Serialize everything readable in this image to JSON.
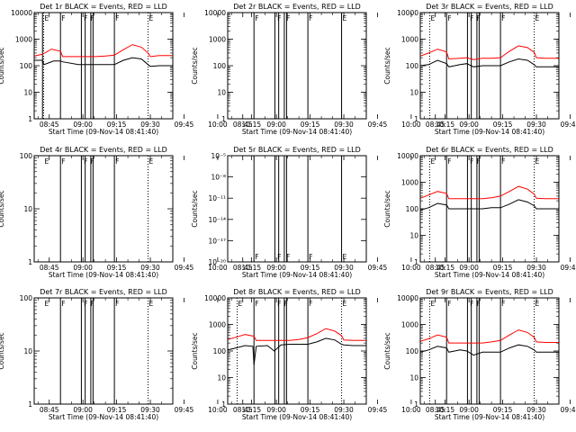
{
  "common": {
    "xlabel": "Start Time (09-Nov-14 08:41:40)",
    "ylabel": "Counts/sec",
    "xticks": [
      "08:45",
      "09:00",
      "09:15",
      "09:30",
      "09:45",
      "10:00",
      "10:15"
    ],
    "xrange_minutes": [
      38.3,
      100
    ],
    "event_color": "#000000",
    "lld_color": "#ff0000"
  },
  "chart_data": [
    {
      "type": "line",
      "title": "Det 1r BLACK = Events, RED = LLD",
      "ylog": true,
      "ylim": [
        1,
        10000
      ],
      "yticks": [
        {
          "v": 1,
          "l": "1"
        },
        {
          "v": 10,
          "l": "10"
        },
        {
          "v": 100,
          "l": "100"
        },
        {
          "v": 1000,
          "l": "1000"
        },
        {
          "v": 10000,
          "l": "10000"
        }
      ],
      "flags": [
        {
          "x": 42.5,
          "t": "E"
        },
        {
          "x": 50,
          "t": "F"
        },
        {
          "x": 60,
          "t": "F"
        },
        {
          "x": 63,
          "t": "F"
        },
        {
          "x": 74,
          "t": "F"
        },
        {
          "x": 89,
          "t": "E"
        }
      ],
      "vlines": [
        42,
        50,
        59.3,
        61,
        63.5,
        64.5,
        74
      ],
      "dotted": [
        42.5,
        89
      ],
      "series": [
        {
          "name": "Events",
          "color": "#000000",
          "x": [
            38.3,
            42,
            42.6,
            47,
            50,
            51,
            58,
            62,
            66,
            70,
            74,
            78,
            82,
            86,
            89,
            90,
            94,
            100
          ],
          "y": [
            160,
            160,
            110,
            150,
            150,
            140,
            110,
            110,
            110,
            110,
            110,
            160,
            200,
            180,
            110,
            95,
            100,
            100
          ]
        },
        {
          "name": "LLD",
          "color": "#ff0000",
          "x": [
            38.3,
            42,
            46,
            50,
            51,
            58,
            62,
            66,
            70,
            74,
            78,
            82,
            86,
            89,
            90,
            94,
            100
          ],
          "y": [
            230,
            270,
            420,
            350,
            220,
            220,
            220,
            220,
            230,
            250,
            400,
            620,
            500,
            300,
            220,
            240,
            240
          ]
        }
      ]
    },
    {
      "type": "line",
      "title": "Det 2r BLACK = Events, RED = LLD",
      "ylog": true,
      "ylim": [
        1,
        10000
      ],
      "yticks": [
        {
          "v": 1,
          "l": "1"
        },
        {
          "v": 10,
          "l": "10"
        },
        {
          "v": 100,
          "l": "100"
        },
        {
          "v": 1000,
          "l": "1000"
        },
        {
          "v": 10000,
          "l": "10000"
        }
      ],
      "flags": [
        {
          "x": 50,
          "t": "F"
        },
        {
          "x": 60,
          "t": "F"
        },
        {
          "x": 64,
          "t": "F"
        },
        {
          "x": 74,
          "t": "F"
        },
        {
          "x": 89,
          "t": "E"
        }
      ],
      "vlines": [
        50,
        59.3,
        61,
        63.5,
        64.5,
        74,
        89
      ],
      "dotted": [],
      "series": []
    },
    {
      "type": "line",
      "title": "Det 3r BLACK = Events, RED = LLD",
      "ylog": true,
      "ylim": [
        1,
        10000
      ],
      "yticks": [
        {
          "v": 1,
          "l": "1"
        },
        {
          "v": 10,
          "l": "10"
        },
        {
          "v": 100,
          "l": "100"
        },
        {
          "v": 1000,
          "l": "1000"
        },
        {
          "v": 10000,
          "l": "10000"
        }
      ],
      "flags": [
        {
          "x": 42.5,
          "t": "E"
        },
        {
          "x": 50,
          "t": "F"
        },
        {
          "x": 60,
          "t": "F"
        },
        {
          "x": 63,
          "t": "F"
        },
        {
          "x": 74,
          "t": "F"
        },
        {
          "x": 89,
          "t": "E"
        }
      ],
      "vlines": [
        50,
        59.3,
        61,
        63.5,
        64.5,
        74
      ],
      "dotted": [
        42.5,
        89
      ],
      "series": [
        {
          "name": "Events",
          "color": "#000000",
          "x": [
            38.3,
            42,
            46,
            50,
            51,
            56,
            59,
            62,
            66,
            70,
            74,
            78,
            82,
            86,
            89,
            90,
            94,
            100
          ],
          "y": [
            100,
            110,
            160,
            120,
            90,
            110,
            120,
            90,
            100,
            100,
            100,
            140,
            180,
            160,
            110,
            90,
            90,
            90
          ]
        },
        {
          "name": "LLD",
          "color": "#ff0000",
          "x": [
            38.3,
            42,
            46,
            50,
            51,
            56,
            59,
            62,
            66,
            70,
            74,
            78,
            82,
            86,
            89,
            90,
            94,
            100
          ],
          "y": [
            230,
            300,
            420,
            330,
            180,
            190,
            200,
            170,
            190,
            190,
            200,
            350,
            560,
            480,
            320,
            200,
            190,
            190
          ]
        }
      ]
    },
    {
      "type": "line",
      "title": "Det 4r BLACK = Events, RED = LLD",
      "ylog": true,
      "ylim": [
        1,
        100
      ],
      "yticks": [
        {
          "v": 1,
          "l": "1"
        },
        {
          "v": 10,
          "l": "10"
        },
        {
          "v": 100,
          "l": "100"
        }
      ],
      "flags": [
        {
          "x": 42.5,
          "t": "E"
        },
        {
          "x": 50,
          "t": "F"
        },
        {
          "x": 60,
          "t": "F"
        },
        {
          "x": 63,
          "t": "F"
        },
        {
          "x": 74,
          "t": "F"
        },
        {
          "x": 89,
          "t": "E"
        }
      ],
      "vlines": [
        50,
        59.3,
        61,
        63.5,
        64.5,
        74
      ],
      "dotted": [
        89
      ],
      "series": []
    },
    {
      "type": "line",
      "title": "Det 5r BLACK = Events, RED = LLD",
      "ylog": true,
      "ylim": [
        1e-20,
        1e-05
      ],
      "yticks": [
        {
          "v": 1e-20,
          "l": "10⁻²⁰"
        },
        {
          "v": 1e-17,
          "l": "10⁻¹⁷"
        },
        {
          "v": 1e-14,
          "l": "10⁻¹⁴"
        },
        {
          "v": 1e-11,
          "l": "10⁻¹¹"
        },
        {
          "v": 1e-08,
          "l": "10⁻⁸"
        },
        {
          "v": 1e-05,
          "l": "10⁻⁵"
        }
      ],
      "flags": [
        {
          "x": 50,
          "t": "F"
        },
        {
          "x": 60,
          "t": "F"
        },
        {
          "x": 64,
          "t": "F"
        },
        {
          "x": 74,
          "t": "F"
        },
        {
          "x": 89,
          "t": "E"
        }
      ],
      "flags_bottom": true,
      "vlines": [
        50,
        59.3,
        61,
        63.5,
        64.5,
        74,
        89
      ],
      "dotted": [],
      "series": []
    },
    {
      "type": "line",
      "title": "Det 6r BLACK = Events, RED = LLD",
      "ylog": true,
      "ylim": [
        1,
        10000
      ],
      "yticks": [
        {
          "v": 1,
          "l": "1"
        },
        {
          "v": 10,
          "l": "10"
        },
        {
          "v": 100,
          "l": "100"
        },
        {
          "v": 1000,
          "l": "1000"
        },
        {
          "v": 10000,
          "l": "10000"
        }
      ],
      "flags": [
        {
          "x": 42.5,
          "t": "E"
        },
        {
          "x": 50,
          "t": "F"
        },
        {
          "x": 60,
          "t": "F"
        },
        {
          "x": 63,
          "t": "F"
        },
        {
          "x": 74,
          "t": "F"
        },
        {
          "x": 89,
          "t": "E"
        }
      ],
      "vlines": [
        50,
        59.3,
        61,
        63.5,
        64.5,
        74
      ],
      "dotted": [
        42.5,
        89
      ],
      "series": [
        {
          "name": "Events",
          "color": "#000000",
          "x": [
            38.3,
            42,
            46,
            50,
            51,
            56,
            62,
            66,
            70,
            74,
            78,
            82,
            86,
            89,
            90,
            94,
            100
          ],
          "y": [
            90,
            110,
            160,
            140,
            100,
            100,
            100,
            100,
            110,
            110,
            150,
            220,
            180,
            130,
            100,
            100,
            100
          ]
        },
        {
          "name": "LLD",
          "color": "#ff0000",
          "x": [
            38.3,
            42,
            46,
            50,
            51,
            56,
            62,
            66,
            70,
            74,
            78,
            82,
            86,
            89,
            90,
            94,
            100
          ],
          "y": [
            250,
            330,
            450,
            380,
            240,
            240,
            240,
            240,
            260,
            300,
            450,
            700,
            550,
            360,
            250,
            240,
            240
          ]
        }
      ]
    },
    {
      "type": "line",
      "title": "Det 7r BLACK = Events, RED = LLD",
      "ylog": true,
      "ylim": [
        1,
        100
      ],
      "yticks": [
        {
          "v": 1,
          "l": "1"
        },
        {
          "v": 10,
          "l": "10"
        },
        {
          "v": 100,
          "l": "100"
        }
      ],
      "flags": [
        {
          "x": 42.5,
          "t": "E"
        },
        {
          "x": 50,
          "t": "F"
        },
        {
          "x": 60,
          "t": "F"
        },
        {
          "x": 63,
          "t": "F"
        },
        {
          "x": 74,
          "t": "F"
        },
        {
          "x": 89,
          "t": "E"
        }
      ],
      "vlines": [
        50,
        59.3,
        61,
        63.5,
        64.5,
        74
      ],
      "dotted": [
        89
      ],
      "series": []
    },
    {
      "type": "line",
      "title": "Det 8r BLACK = Events, RED = LLD",
      "ylog": true,
      "ylim": [
        1,
        10000
      ],
      "yticks": [
        {
          "v": 1,
          "l": "1"
        },
        {
          "v": 10,
          "l": "10"
        },
        {
          "v": 100,
          "l": "100"
        },
        {
          "v": 1000,
          "l": "1000"
        },
        {
          "v": 10000,
          "l": "10000"
        }
      ],
      "flags": [
        {
          "x": 42.5,
          "t": "E"
        },
        {
          "x": 50,
          "t": "F"
        },
        {
          "x": 60,
          "t": "F"
        },
        {
          "x": 63,
          "t": "F"
        },
        {
          "x": 74,
          "t": "F"
        },
        {
          "x": 89,
          "t": "E"
        }
      ],
      "vlines": [
        50,
        59.3,
        61,
        63.5,
        64.5,
        74
      ],
      "dotted": [
        42.5,
        89
      ],
      "series": [
        {
          "name": "Events",
          "color": "#000000",
          "x": [
            38.3,
            42,
            46,
            49.5,
            50,
            51,
            56,
            59,
            62,
            66,
            70,
            74,
            78,
            82,
            86,
            89,
            90,
            94,
            100
          ],
          "y": [
            110,
            130,
            160,
            150,
            30,
            150,
            160,
            100,
            170,
            180,
            180,
            180,
            220,
            300,
            260,
            180,
            170,
            160,
            160
          ]
        },
        {
          "name": "LLD",
          "color": "#ff0000",
          "x": [
            38.3,
            42,
            46,
            50,
            51,
            56,
            62,
            66,
            70,
            74,
            78,
            82,
            86,
            89,
            90,
            94,
            100
          ],
          "y": [
            270,
            330,
            420,
            360,
            250,
            250,
            250,
            250,
            270,
            320,
            450,
            700,
            560,
            380,
            260,
            250,
            250
          ]
        }
      ]
    },
    {
      "type": "line",
      "title": "Det 9r BLACK = Events, RED = LLD",
      "ylog": true,
      "ylim": [
        1,
        10000
      ],
      "yticks": [
        {
          "v": 1,
          "l": "1"
        },
        {
          "v": 10,
          "l": "10"
        },
        {
          "v": 100,
          "l": "100"
        },
        {
          "v": 1000,
          "l": "1000"
        },
        {
          "v": 10000,
          "l": "10000"
        }
      ],
      "flags": [
        {
          "x": 42.5,
          "t": "E"
        },
        {
          "x": 50,
          "t": "F"
        },
        {
          "x": 60,
          "t": "F"
        },
        {
          "x": 63,
          "t": "F"
        },
        {
          "x": 74,
          "t": "F"
        },
        {
          "x": 89,
          "t": "E"
        }
      ],
      "vlines": [
        50,
        59.3,
        61,
        63.5,
        64.5,
        74
      ],
      "dotted": [
        42.5,
        89
      ],
      "series": [
        {
          "name": "Events",
          "color": "#000000",
          "x": [
            38.3,
            42,
            46,
            50,
            51,
            56,
            59,
            62,
            66,
            70,
            74,
            78,
            82,
            86,
            89,
            90,
            94,
            100
          ],
          "y": [
            90,
            110,
            150,
            130,
            90,
            110,
            100,
            70,
            90,
            90,
            90,
            130,
            170,
            150,
            110,
            90,
            90,
            90
          ]
        },
        {
          "name": "LLD",
          "color": "#ff0000",
          "x": [
            38.3,
            42,
            46,
            50,
            51,
            56,
            62,
            66,
            70,
            74,
            78,
            82,
            86,
            89,
            90,
            94,
            100
          ],
          "y": [
            230,
            290,
            400,
            330,
            200,
            200,
            200,
            200,
            220,
            250,
            400,
            620,
            500,
            330,
            220,
            210,
            210
          ]
        }
      ]
    }
  ]
}
